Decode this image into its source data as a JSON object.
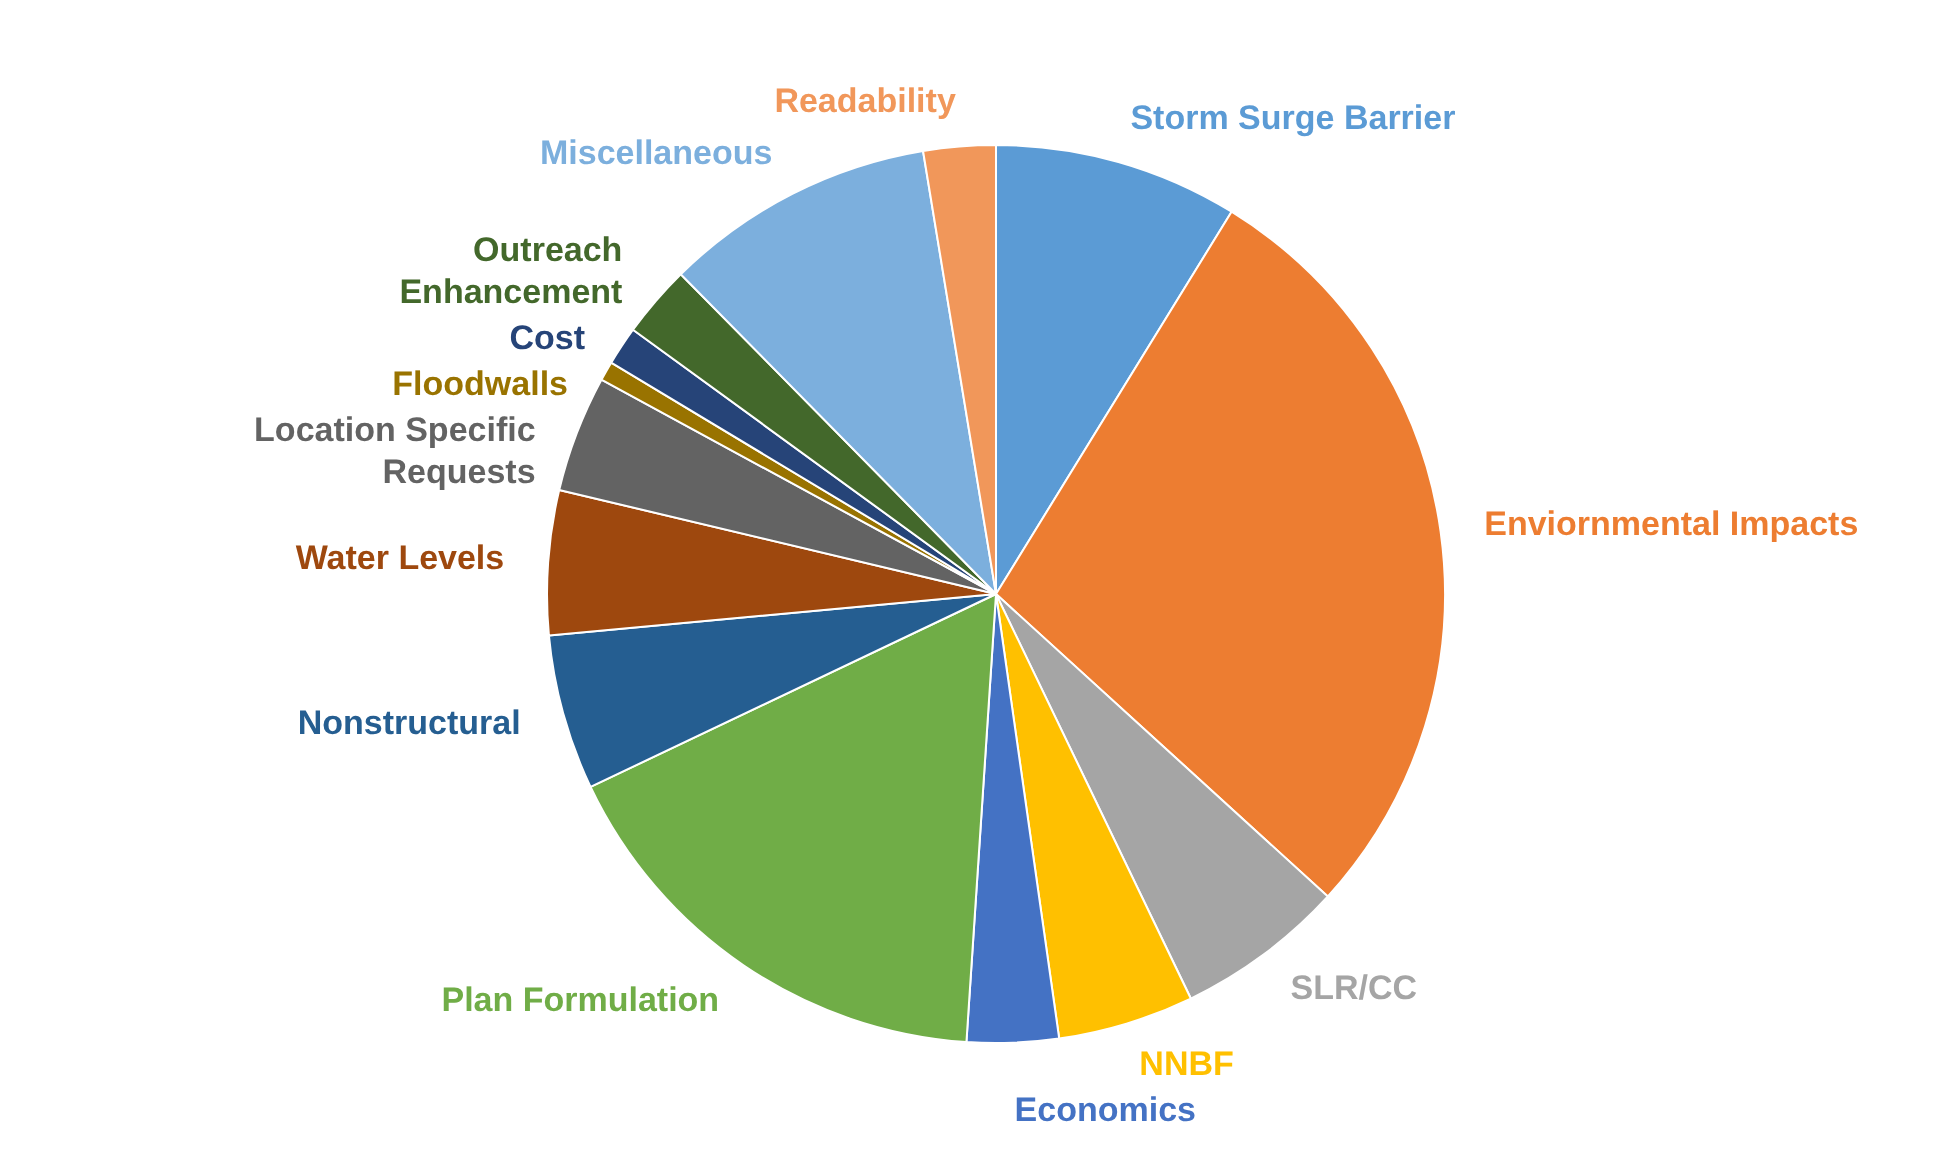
{
  "chart_data": {
    "type": "pie",
    "categories": [
      "Storm Surge Barrier",
      "Enviornmental Impacts",
      "SLR/CC",
      "NNBF",
      "Economics",
      "Plan Formulation",
      "Nonstructural",
      "Water Levels",
      "Location Specific Requests",
      "Floodwalls",
      "Cost",
      "Outreach Enhancement",
      "Miscellaneous",
      "Readability"
    ],
    "values": [
      8.8,
      28.0,
      6.1,
      4.9,
      3.3,
      16.9,
      5.6,
      5.2,
      4.2,
      0.7,
      1.4,
      2.6,
      9.8,
      2.6
    ],
    "colors": [
      "#5b9bd5",
      "#ed7d31",
      "#a5a5a5",
      "#ffc000",
      "#4472c4",
      "#70ad47",
      "#255e91",
      "#9e480e",
      "#636363",
      "#997300",
      "#264478",
      "#43682b",
      "#7cafdd",
      "#f1975a"
    ],
    "legend": false
  }
}
